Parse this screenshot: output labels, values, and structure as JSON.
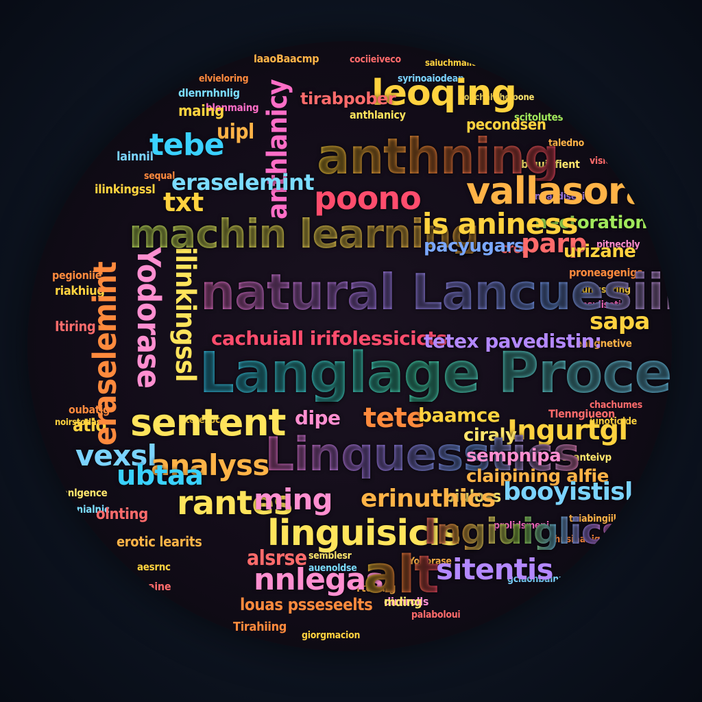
{
  "colors": {
    "background": "#0b1220",
    "yellow": "#ffd23f",
    "orange": "#ff8a3d",
    "red": "#ff4d6d",
    "cyan": "#3ad1ff",
    "purple": "#b388ff",
    "pink": "#ff6ec7",
    "green": "#a0e85b"
  },
  "words": {
    "w01": "leoqing",
    "w02": "tirabpober",
    "w03": "anthning",
    "w04": "poono",
    "w05": "vallasoras",
    "w06": "machin learning",
    "w07": "is aniness",
    "w08": "nectoration",
    "w09": "natural Lancuesiing",
    "w10": "Langlage Processiing",
    "w11": "sentent",
    "w12": "analyss",
    "w13": "Linquesstics",
    "w14": "linguisicis",
    "w15": "Ingiuiglics",
    "w16": "alt",
    "w17": "sitentis",
    "w18": "nnlegas",
    "w19": "rantes",
    "w20": "ming",
    "w21": "erinuthics",
    "w22": "booyistisl",
    "w23": "vexsl",
    "w24": "ubtaa",
    "w25": "tebe",
    "w26": "txt",
    "w27": "eraselemint",
    "w28": "sapa",
    "w29": "parp",
    "w30": "urizane",
    "w31": "pacyugars",
    "w32": "Ingurtgl",
    "w33": "tete",
    "w34": "dipe",
    "w35": "baamce",
    "w36": "ciraly",
    "w37": "sempnipa",
    "w38": "claipining alfie",
    "w39": "cachuiall irifolessicicts",
    "w40": "tetex pavedistin:",
    "w41": "uipl",
    "w42": "maing",
    "w43": "atio",
    "w44": "biuloss",
    "w45": "pecondsen",
    "w46": "otetesoc",
    "w47": "mding",
    "w48": "louas psseseelts",
    "w49": "alsrse",
    "w50": "semblesr",
    "w51": "auenoldse",
    "w52": "Yodorase",
    "w53": "laaoBaacmp",
    "w54": "cociieiveco",
    "w55": "olnting",
    "w56": "erotic learits",
    "w57": "lainnil",
    "w58": "taledno",
    "w59": "ilinkingssl",
    "w60": "sequal",
    "w61": "nbasdiseyi",
    "w62": "dlenrnhnlig",
    "w63": "blenmaing",
    "w64": "anthlanicy",
    "w65": "scitolutes",
    "w66": "saiuchmaiiome",
    "w67": "elvieloring",
    "w68": "blquidfient",
    "w69": "visiolt",
    "w70": "pitnecbly",
    "w71": "proneagenigs",
    "w72": "croi",
    "w73": "ounicsaring",
    "w74": "nsuliseti",
    "w75": "ealignetive",
    "w76": "riakhiug",
    "w77": "pegioniie",
    "w78": "Itiring",
    "w79": "anlgence",
    "w80": "dounialnic",
    "w81": "oubatig",
    "w82": "noirstodas",
    "w83": "chachumes",
    "w84": "iunotiolde",
    "w85": "Tlenngiueon",
    "w86": "saanteivp",
    "w87": "toiabingiil",
    "w88": "syrinoaiodean",
    "w89": "souchahtholoone",
    "w90": "prolidsmeni",
    "w91": "ohnsihanigs",
    "w92": "gciaohbainuug",
    "w93": "ciuhiinoun",
    "w94": "rtening",
    "w95": "palaboloui",
    "w96": "Tirahiing",
    "w97": "giorgmacion",
    "w98": "atnaine",
    "w99": "aesrnc",
    "w100": "dirnrolls"
  }
}
